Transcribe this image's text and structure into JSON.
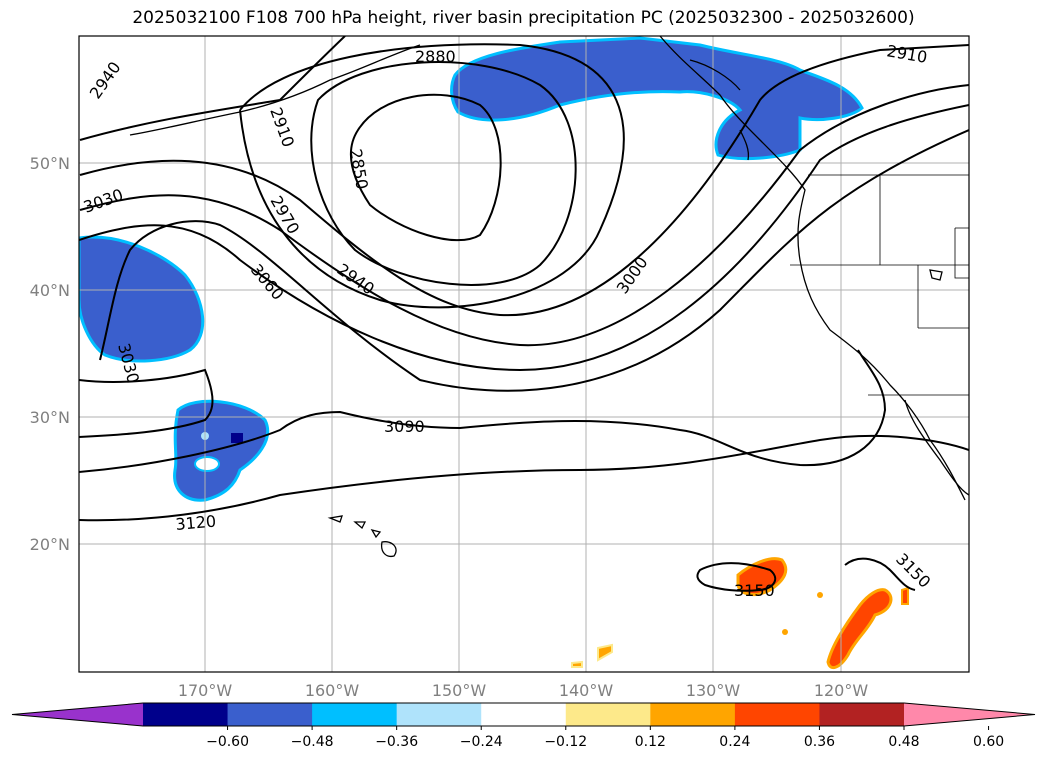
{
  "title": "2025032100 F108 700 hPa height, river basin precipitation PC (2025032300 - 2025032600)",
  "lat_labels": [
    "50°N",
    "40°N",
    "30°N",
    "20°N"
  ],
  "lon_labels": [
    "170°W",
    "160°W",
    "150°W",
    "140°W",
    "130°W",
    "120°W"
  ],
  "contour_labels": [
    "2940",
    "2880",
    "2910",
    "2910",
    "2850",
    "3030",
    "2970",
    "3060",
    "2940",
    "3000",
    "3030",
    "3090",
    "3120",
    "3150",
    "3150"
  ],
  "colorbar": {
    "ticks": [
      "−0.60",
      "−0.48",
      "−0.36",
      "−0.24",
      "−0.12",
      "0.12",
      "0.24",
      "0.36",
      "0.48",
      "0.60"
    ],
    "colors": [
      "#9932cc",
      "#00008b",
      "#3a5fcd",
      "#00bfff",
      "#afe3fb",
      "#ffffff",
      "#fde98a",
      "#ffa500",
      "#ff4500",
      "#b22222",
      "#ff88aa"
    ]
  }
}
